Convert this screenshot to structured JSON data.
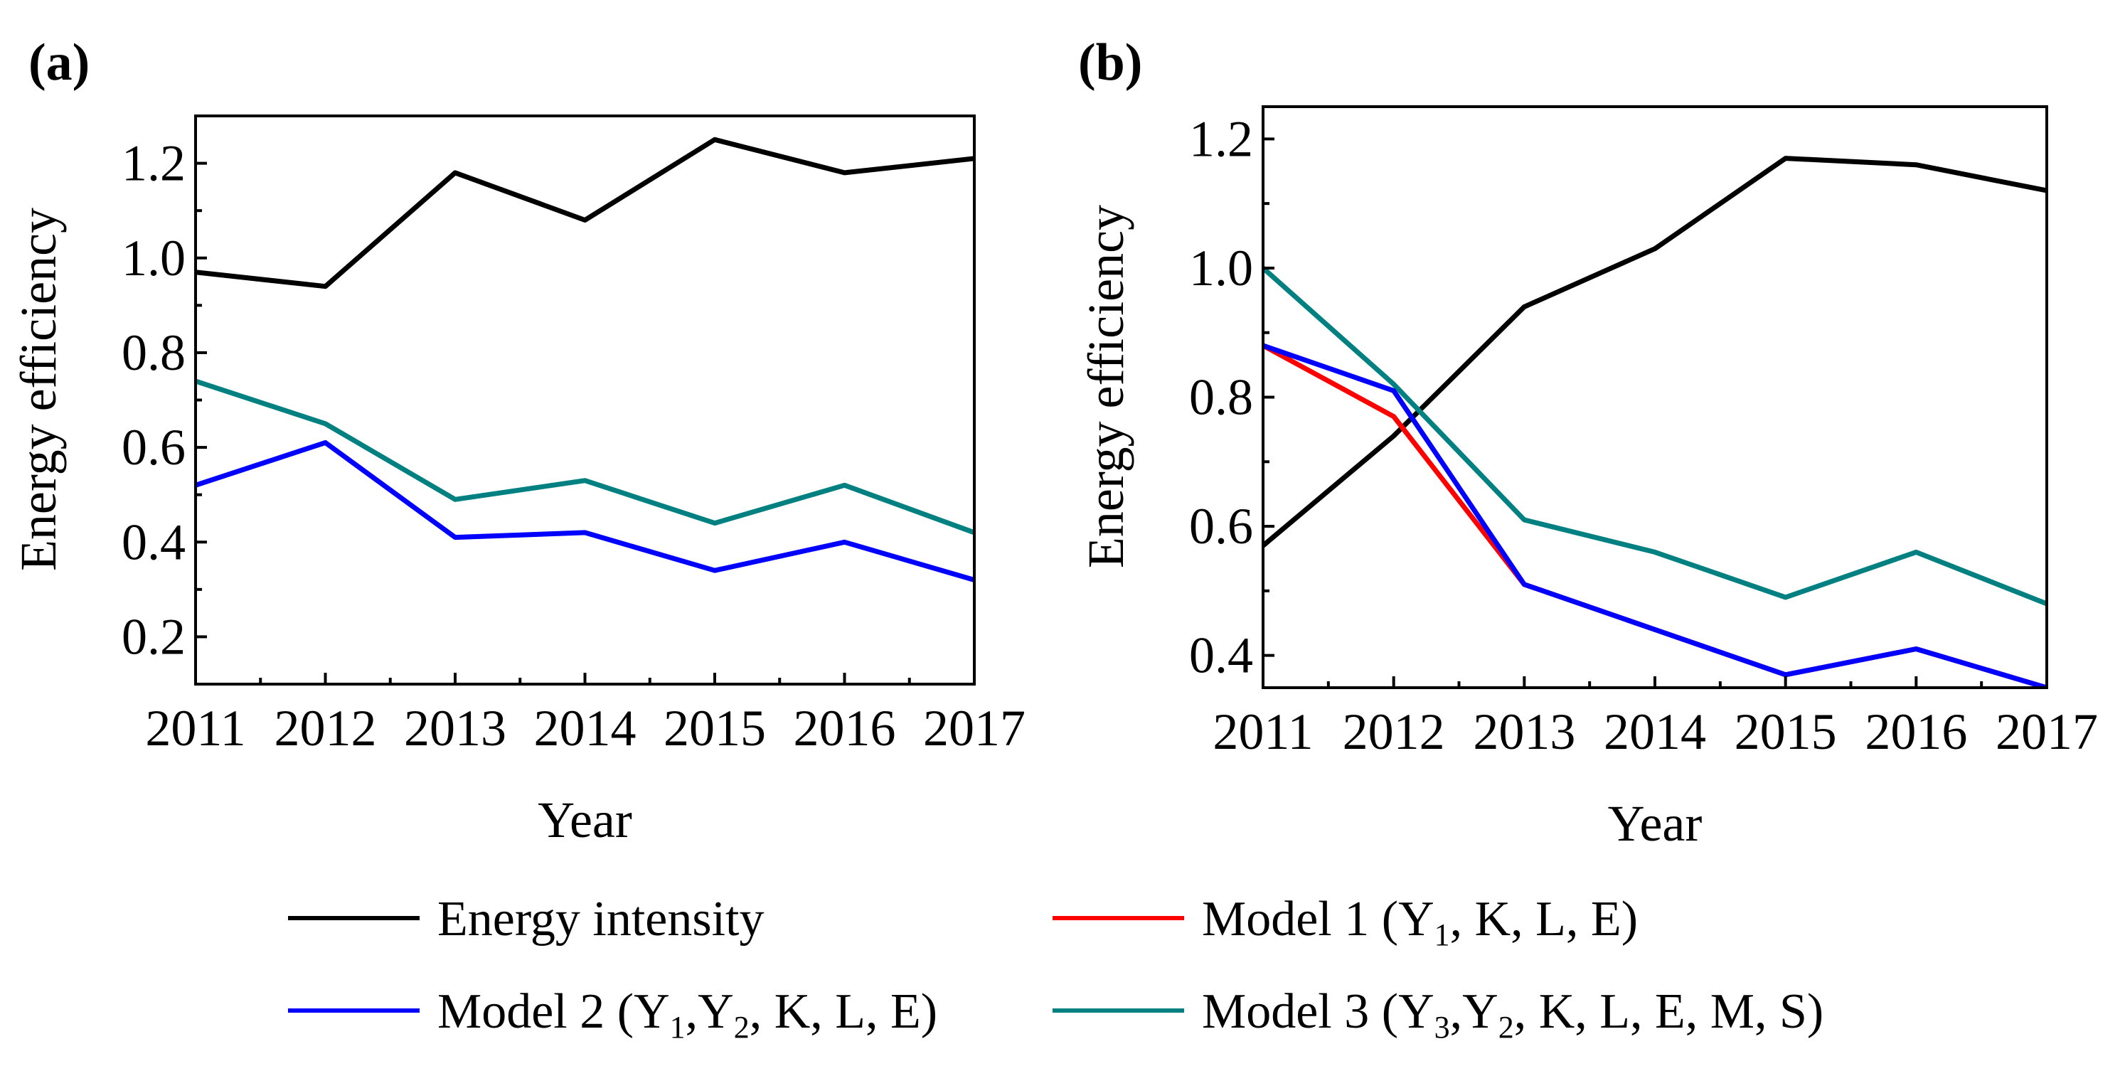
{
  "chart_data": [
    {
      "type": "line",
      "panel": "(a)",
      "xlabel": "Year",
      "ylabel": "Energy efficiency",
      "x": [
        2011,
        2012,
        2013,
        2014,
        2015,
        2016,
        2017
      ],
      "xtick_labels": [
        "2011",
        "2012",
        "2013",
        "2014",
        "2015",
        "2016",
        "2017"
      ],
      "ylim": [
        0.1,
        1.3
      ],
      "yticks": [
        0.2,
        0.4,
        0.6,
        0.8,
        1.0,
        1.2
      ],
      "ytick_labels": [
        "0.2",
        "0.4",
        "0.6",
        "0.8",
        "1.0",
        "1.2"
      ],
      "series": [
        {
          "key": "energy_intensity",
          "name": "Energy intensity",
          "values": [
            0.97,
            0.94,
            1.18,
            1.08,
            1.25,
            1.18,
            1.21
          ]
        },
        {
          "key": "model3",
          "name": "Model 3",
          "values": [
            0.74,
            0.65,
            0.49,
            0.53,
            0.44,
            0.52,
            0.42
          ]
        },
        {
          "key": "model2",
          "name": "Model 2",
          "values": [
            0.52,
            0.61,
            0.41,
            0.42,
            0.34,
            0.4,
            0.32
          ]
        }
      ]
    },
    {
      "type": "line",
      "panel": "(b)",
      "xlabel": "Year",
      "ylabel": "Energy efficiency",
      "x": [
        2011,
        2012,
        2013,
        2014,
        2015,
        2016,
        2017
      ],
      "xtick_labels": [
        "2011",
        "2012",
        "2013",
        "2014",
        "2015",
        "2016",
        "2017"
      ],
      "ylim": [
        0.35,
        1.25
      ],
      "yticks": [
        0.4,
        0.6,
        0.8,
        1.0,
        1.2
      ],
      "ytick_labels": [
        "0.4",
        "0.6",
        "0.8",
        "1.0",
        "1.2"
      ],
      "series": [
        {
          "key": "energy_intensity",
          "name": "Energy intensity",
          "values": [
            0.57,
            0.74,
            0.94,
            1.03,
            1.17,
            1.16,
            1.12
          ]
        },
        {
          "key": "model3",
          "name": "Model 3",
          "values": [
            1.0,
            0.82,
            0.61,
            0.56,
            0.49,
            0.56,
            0.48
          ]
        },
        {
          "key": "model1",
          "name": "Model 1",
          "values": [
            0.88,
            0.77,
            0.51,
            0.44,
            0.37,
            0.41,
            0.35
          ]
        },
        {
          "key": "model2",
          "name": "Model 2",
          "values": [
            0.88,
            0.81,
            0.51,
            0.44,
            0.37,
            0.41,
            0.35
          ]
        }
      ]
    }
  ],
  "colors": {
    "energy_intensity": "#000000",
    "model1": "#ff0000",
    "model2": "#0000ff",
    "model3": "#008080"
  },
  "legend": {
    "items": [
      {
        "key": "energy_intensity",
        "label": "Energy intensity"
      },
      {
        "key": "model1",
        "label": "Model 1 (Y",
        "sub": "1",
        "rest": ", K, L, E)"
      },
      {
        "key": "model2",
        "label": "Model 2 (Y",
        "sub": "1",
        "mid": ",Y",
        "sub2": "2",
        "rest": ", K, L, E)"
      },
      {
        "key": "model3",
        "label": "Model 3 (Y",
        "sub": "3",
        "mid": ",Y",
        "sub2": "2",
        "rest": ", K, L, E, M, S)"
      }
    ]
  }
}
